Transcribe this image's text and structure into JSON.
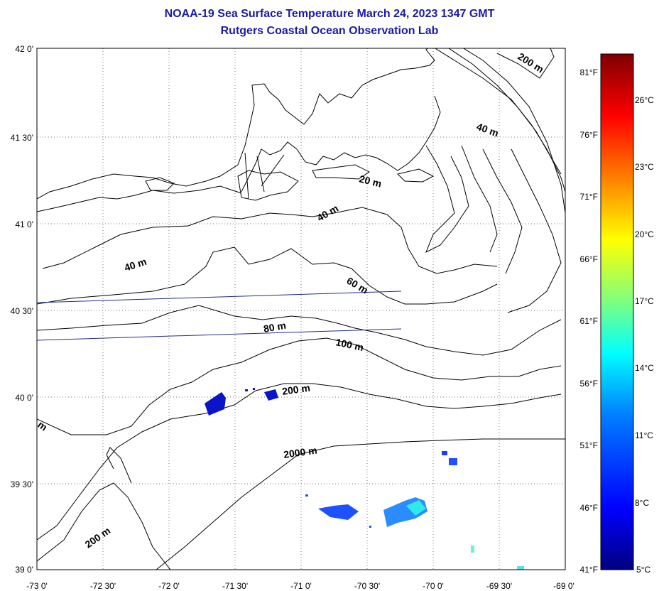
{
  "title": "NOAA-19 Sea Surface Temperature March 24, 2023 1347 GMT",
  "subtitle": "Rutgers Coastal Ocean Observation Lab",
  "axes": {
    "x_ticks": [
      "-73 0'",
      "-72 30'",
      "-72 0'",
      "-71 30'",
      "-71 0'",
      "-70 30'",
      "-70 0'",
      "-69 30'",
      "-69 0'"
    ],
    "y_ticks": [
      "42 0'",
      "41 30'",
      "41 0'",
      "40 30'",
      "40 0'",
      "39 30'",
      "39 0'"
    ]
  },
  "contour_labels": [
    "200 m",
    "40 m",
    "20 m",
    "40 m",
    "40 m",
    "60 m",
    "80 m",
    "100 m",
    "200 m",
    "2000 m",
    "200 m",
    "m"
  ],
  "colorbar": {
    "colors": [
      "#00007f",
      "#0000ff",
      "#007fff",
      "#00ffff",
      "#7fff7f",
      "#ffff00",
      "#ff7f00",
      "#ff0000",
      "#7f0000"
    ],
    "fahrenheit_labels": [
      "81°F",
      "76°F",
      "71°F",
      "66°F",
      "61°F",
      "56°F",
      "51°F",
      "46°F",
      "41°F"
    ],
    "celsius_labels": [
      "26°C",
      "23°C",
      "20°C",
      "17°C",
      "14°C",
      "11°C",
      "8°C",
      "5°C"
    ]
  }
}
